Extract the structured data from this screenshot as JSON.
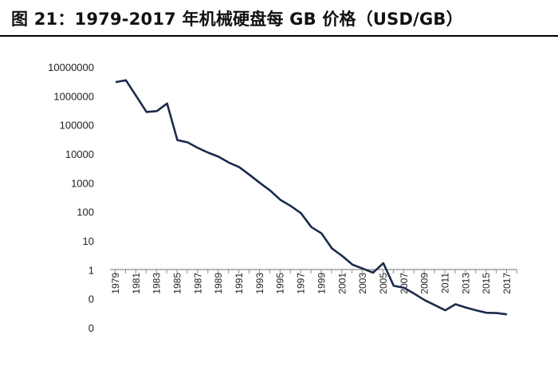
{
  "header": {
    "title": "图 21：1979-2017 年机械硬盘每 GB 价格（USD/GB）"
  },
  "colors": {
    "line": "#1a2b4c",
    "axis": "#8c8c8c",
    "title_rule": "#000000"
  },
  "chart_data": {
    "type": "line",
    "title": "图 21：1979-2017 年机械硬盘每 GB 价格（USD/GB）",
    "xlabel": "",
    "ylabel": "",
    "yscale": "log",
    "ylim": [
      0.01,
      10000000
    ],
    "grid": false,
    "legend": "none",
    "y_tick_labels": [
      {
        "value": 10000000,
        "label": "10000000"
      },
      {
        "value": 1000000,
        "label": "1000000"
      },
      {
        "value": 100000,
        "label": "100000"
      },
      {
        "value": 10000,
        "label": "10000"
      },
      {
        "value": 1000,
        "label": "1000"
      },
      {
        "value": 100,
        "label": "100"
      },
      {
        "value": 10,
        "label": "10"
      },
      {
        "value": 1,
        "label": "1"
      },
      {
        "value": 0.1,
        "label": "0"
      },
      {
        "value": 0.01,
        "label": "0"
      }
    ],
    "x_tick_labels": [
      "1979",
      "1981",
      "1983",
      "1985",
      "1987",
      "1989",
      "1991",
      "1993",
      "1995",
      "1997",
      "1999",
      "2001",
      "2003",
      "2005",
      "2007",
      "2009",
      "2011",
      "2013",
      "2015",
      "2017"
    ],
    "x": [
      1979,
      1980,
      1981,
      1982,
      1983,
      1984,
      1985,
      1986,
      1987,
      1988,
      1989,
      1990,
      1991,
      1992,
      1993,
      1994,
      1995,
      1996,
      1997,
      1998,
      1999,
      2000,
      2001,
      2002,
      2003,
      2004,
      2005,
      2006,
      2007,
      2008,
      2009,
      2010,
      2011,
      2012,
      2013,
      2014,
      2015,
      2016,
      2017
    ],
    "series": [
      {
        "values": [
          3000000,
          3500000,
          1000000,
          280000,
          300000,
          550000,
          30000,
          25000,
          16000,
          11000,
          8000,
          5000,
          3500,
          1900,
          1000,
          550,
          260,
          160,
          90,
          30,
          18,
          5.5,
          3,
          1.5,
          1.1,
          0.8,
          1.7,
          0.28,
          0.24,
          0.15,
          0.09,
          0.06,
          0.04,
          0.065,
          0.05,
          0.04,
          0.033,
          0.032,
          0.029
        ]
      }
    ]
  }
}
